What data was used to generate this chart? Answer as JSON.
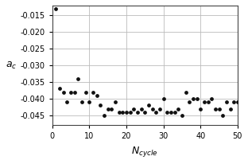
{
  "x": [
    1,
    2,
    3,
    4,
    5,
    6,
    7,
    8,
    9,
    10,
    11,
    12,
    13,
    14,
    15,
    16,
    17,
    18,
    19,
    20,
    21,
    22,
    23,
    24,
    25,
    26,
    27,
    28,
    29,
    30,
    31,
    32,
    33,
    34,
    35,
    36,
    37,
    38,
    39,
    40,
    41,
    42,
    43,
    44,
    45,
    46,
    47,
    48,
    49,
    50
  ],
  "y": [
    -0.013,
    -0.037,
    -0.038,
    -0.041,
    -0.038,
    -0.038,
    -0.034,
    -0.041,
    -0.038,
    -0.041,
    -0.038,
    -0.039,
    -0.042,
    -0.045,
    -0.043,
    -0.043,
    -0.041,
    -0.044,
    -0.044,
    -0.044,
    -0.044,
    -0.043,
    -0.044,
    -0.043,
    -0.044,
    -0.042,
    -0.043,
    -0.044,
    -0.043,
    -0.04,
    -0.044,
    -0.044,
    -0.044,
    -0.043,
    -0.045,
    -0.038,
    -0.041,
    -0.04,
    -0.04,
    -0.043,
    -0.041,
    -0.041,
    -0.04,
    -0.043,
    -0.043,
    -0.045,
    -0.041,
    -0.043,
    -0.041,
    -0.041
  ],
  "xlim": [
    0,
    50
  ],
  "ylim": [
    -0.048,
    -0.012
  ],
  "xticks": [
    0,
    10,
    20,
    30,
    40,
    50
  ],
  "yticks": [
    -0.015,
    -0.02,
    -0.025,
    -0.03,
    -0.035,
    -0.04,
    -0.045
  ],
  "marker_color": "#111111",
  "marker_size": 12,
  "grid_color": "#bbbbbb",
  "bg_color": "#ffffff",
  "fig_bg": "#ffffff",
  "xlabel": "$N_{cycle}$",
  "ylabel": "$a_c$",
  "xlabel_fontsize": 9,
  "ylabel_fontsize": 9,
  "tick_fontsize": 7,
  "figwidth": 3.12,
  "figheight": 2.06,
  "dpi": 100
}
